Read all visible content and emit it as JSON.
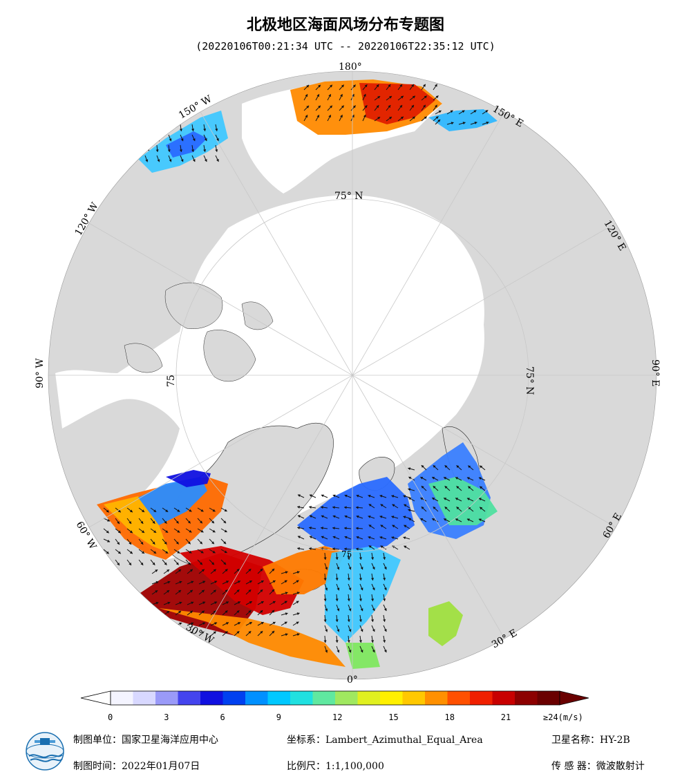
{
  "title": "北极地区海面风场分布专题图",
  "time_range": "(20220106T00:21:34 UTC -- 20220106T22:35:12 UTC)",
  "longitude_labels": {
    "lon_180": "180°",
    "lon_150e": "150° E",
    "lon_120e": "120° E",
    "lon_90e": "90° E",
    "lon_60e": "60° E",
    "lon_30e": "30° E",
    "lon_0": "0°",
    "lon_30w": "30° W",
    "lon_60w": "60° W",
    "lon_90w": "90° W",
    "lon_120w": "120° W",
    "lon_150w": "150° W"
  },
  "latitude_labels": {
    "lat_75n_top": "75° N",
    "lat_75n_right": "75° N",
    "lat_75_left": "75",
    "lat_75_bottom": "75"
  },
  "colorbar": {
    "ticks": [
      "0",
      "3",
      "6",
      "9",
      "12",
      "15",
      "18",
      "21"
    ],
    "max_label": "≥24(m/s)",
    "colors": [
      "#f4f4ff",
      "#d8d8ff",
      "#9a9af8",
      "#4444ee",
      "#1010e0",
      "#0040f0",
      "#0090ff",
      "#00c8ff",
      "#20e0e0",
      "#60e8a0",
      "#a0e860",
      "#e0f020",
      "#fff000",
      "#ffc800",
      "#ff9000",
      "#ff5000",
      "#f02000",
      "#c80000",
      "#8c0000",
      "#6a0000"
    ]
  },
  "footer": {
    "producer": "制图单位：国家卫星海洋应用中心",
    "date": "制图时间：2022年01月07日",
    "projection": "坐标系：Lambert_Azimuthal_Equal_Area",
    "scale": "比例尺：1:1,100,000",
    "satellite": "卫星名称：HY-2B",
    "sensor": "传 感 器：微波散射计"
  },
  "colors": {
    "land": "#d9d9d9",
    "ice": "#ffffff",
    "graticule": "#c8c8c8"
  },
  "icons": [
    "noc-logo-icon"
  ]
}
